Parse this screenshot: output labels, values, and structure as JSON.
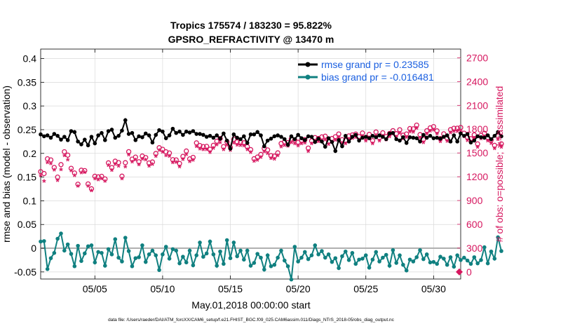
{
  "title_line1": "Tropics 175574 / 183230 = 95.822%",
  "title_line2": "GPSRO_REFRACTIVITY @ 13470 m",
  "footer_note": "data file: /Users/raeder/DAI/ATM_forcXX/CAM6_setup/f.e21.FHIST_BGC.f09_025.CAM6assim.011/Diags_NTrS_2018-05/obs_diag_output.nc",
  "colors": {
    "rmse": "#000000",
    "bias": "#108080",
    "obs": "#d6175f",
    "zero_line": "#b0b0b0",
    "legend_text": "#1a5fe0"
  },
  "chart_data": {
    "type": "line",
    "xlabel": "May.01,2018 00:00:00 start",
    "ylabel_left": "rmse and bias (model - observation)",
    "ylabel_right": "# of obs: o=possible; ∗=assimilated",
    "xlim": [
      1,
      32
    ],
    "ylim_left": [
      -0.065,
      0.42
    ],
    "ylim_right": [
      -90,
      2810
    ],
    "x_ticks": [
      5,
      10,
      15,
      20,
      25,
      30
    ],
    "x_tick_labels": [
      "05/05",
      "05/10",
      "05/15",
      "05/20",
      "05/25",
      "05/30"
    ],
    "y_left_ticks": [
      -0.05,
      0,
      0.05,
      0.1,
      0.15,
      0.2,
      0.25,
      0.3,
      0.35,
      0.4
    ],
    "y_left_tick_labels": [
      "-0.05",
      "0",
      "0.05",
      "0.1",
      "0.15",
      "0.2",
      "0.25",
      "0.3",
      "0.35",
      "0.4"
    ],
    "y_right_ticks": [
      0,
      300,
      600,
      900,
      1200,
      1500,
      1800,
      2100,
      2400,
      2700
    ],
    "y_right_tick_labels": [
      "0",
      "300",
      "600",
      "900",
      "1200",
      "1500",
      "1800",
      "2100",
      "2400",
      "2700"
    ],
    "legend": [
      "rmse grand pr = 0.23585",
      "bias grand pr = -0.016481"
    ],
    "legend_position": "top-right",
    "x_step_days": 0.25,
    "x_start": 1.0,
    "rmse": [
      0.24,
      0.236,
      0.238,
      0.233,
      0.241,
      0.237,
      0.229,
      0.235,
      0.228,
      0.247,
      0.245,
      0.225,
      0.219,
      0.229,
      0.217,
      0.235,
      0.221,
      0.238,
      0.243,
      0.228,
      0.247,
      0.25,
      0.233,
      0.237,
      0.248,
      0.27,
      0.241,
      0.243,
      0.228,
      0.236,
      0.234,
      0.242,
      0.238,
      0.223,
      0.239,
      0.249,
      0.246,
      0.232,
      0.238,
      0.252,
      0.243,
      0.246,
      0.239,
      0.246,
      0.244,
      0.247,
      0.241,
      0.241,
      0.239,
      0.235,
      0.237,
      0.233,
      0.238,
      0.231,
      0.242,
      0.227,
      0.21,
      0.24,
      0.233,
      0.23,
      0.236,
      0.222,
      0.24,
      0.24,
      0.245,
      0.238,
      0.215,
      0.227,
      0.231,
      0.236,
      0.238,
      0.235,
      0.23,
      0.218,
      0.236,
      0.23,
      0.239,
      0.232,
      0.228,
      0.236,
      0.235,
      0.224,
      0.231,
      0.225,
      0.214,
      0.232,
      0.224,
      0.205,
      0.228,
      0.215,
      0.237,
      0.225,
      0.235,
      0.239,
      0.227,
      0.233,
      0.235,
      0.232,
      0.237,
      0.234,
      0.238,
      0.235,
      0.23,
      0.242,
      0.243,
      0.23,
      0.227,
      0.234,
      0.222,
      0.234,
      0.233,
      0.232,
      0.225,
      0.239,
      0.233,
      0.237,
      0.232,
      0.233,
      0.231,
      0.235,
      0.238,
      0.225,
      0.238,
      0.225,
      0.242,
      0.237,
      0.241,
      0.223,
      0.227,
      0.236,
      0.234,
      0.233,
      0.238,
      0.23,
      0.237,
      0.245,
      0.236
    ],
    "bias": [
      0.014,
      0.015,
      -0.044,
      -0.021,
      -0.01,
      0.02,
      0.031,
      -0.005,
      0.008,
      -0.012,
      -0.038,
      0.005,
      -0.027,
      -0.011,
      0.004,
      0.006,
      -0.03,
      -0.008,
      -0.01,
      -0.037,
      -0.002,
      -0.013,
      0.019,
      -0.02,
      -0.028,
      0.022,
      -0.006,
      -0.038,
      -0.021,
      -0.019,
      0.006,
      -0.029,
      -0.013,
      -0.005,
      -0.015,
      -0.046,
      -0.013,
      0.003,
      -0.022,
      -0.002,
      -0.005,
      -0.032,
      -0.018,
      -0.03,
      -0.005,
      -0.036,
      -0.015,
      0.012,
      -0.018,
      -0.011,
      0.014,
      -0.013,
      -0.037,
      -0.007,
      -0.033,
      0.017,
      -0.021,
      0.012,
      -0.017,
      -0.005,
      -0.024,
      -0.005,
      -0.037,
      -0.031,
      -0.012,
      -0.02,
      -0.045,
      -0.015,
      -0.038,
      -0.035,
      -0.02,
      -0.005,
      -0.026,
      -0.038,
      -0.066,
      0.003,
      -0.028,
      -0.02,
      -0.008,
      -0.023,
      -0.015,
      0.006,
      -0.013,
      -0.006,
      -0.02,
      -0.013,
      -0.029,
      -0.021,
      -0.042,
      -0.017,
      -0.007,
      -0.025,
      -0.01,
      -0.033,
      -0.024,
      -0.022,
      -0.015,
      -0.041,
      -0.024,
      -0.008,
      -0.028,
      -0.02,
      -0.014,
      -0.037,
      -0.004,
      -0.031,
      -0.015,
      -0.035,
      -0.047,
      -0.024,
      -0.028,
      -0.019,
      -0.004,
      -0.023,
      -0.013,
      -0.03,
      -0.029,
      -0.033,
      -0.018,
      -0.022,
      -0.035,
      -0.019,
      -0.039,
      -0.015,
      -0.025,
      -0.02,
      -0.026,
      -0.033,
      -0.019,
      -0.032,
      -0.025,
      0.002,
      -0.032,
      -0.007,
      -0.022,
      0.023,
      -0.006
    ],
    "obs_possible": [
      1264,
      1240,
      1426,
      1412,
      1317,
      1195,
      1353,
      1515,
      1472,
      1306,
      1247,
      1106,
      1282,
      1277,
      1109,
      1048,
      1206,
      1198,
      1205,
      1172,
      1375,
      1316,
      1396,
      1379,
      1207,
      1377,
      1516,
      1422,
      1447,
      1389,
      1461,
      1442,
      1373,
      1386,
      1493,
      1566,
      1546,
      1514,
      1499,
      1415,
      1412,
      1367,
      1456,
      1524,
      1425,
      1444,
      1627,
      1593,
      1580,
      1583,
      1547,
      1596,
      1648,
      1682,
      1580,
      1639,
      1571,
      1673,
      1639,
      1634,
      1628,
      1580,
      1542,
      1427,
      1448,
      1481,
      1557,
      1538,
      1466,
      1460,
      1501,
      1619,
      1639,
      1631,
      1676,
      1664,
      1634,
      1657,
      1668,
      1561,
      1652,
      1694,
      1683,
      1702,
      1711,
      1646,
      1682,
      1704,
      1739,
      1667,
      1657,
      1715,
      1727,
      1738,
      1706,
      1751,
      1693,
      1734,
      1655,
      1764,
      1692,
      1754,
      1707,
      1745,
      1781,
      1743,
      1792,
      1724,
      1739,
      1807,
      1804,
      1851,
      1731,
      1671,
      1780,
      1816,
      1832,
      1779,
      1681,
      1741,
      1687,
      1794,
      1811,
      1812,
      1821,
      1749,
      1697,
      1680,
      1728,
      1614,
      1722,
      1748,
      1693,
      1664,
      1596,
      1713,
      1615
    ],
    "obs_assimilated": [
      1201,
      1132,
      1365,
      1351,
      1270,
      1139,
      1278,
      1451,
      1398,
      1261,
      1201,
      1069,
      1237,
      1242,
      1069,
      1011,
      1163,
      1148,
      1162,
      1129,
      1327,
      1265,
      1341,
      1320,
      1160,
      1313,
      1460,
      1372,
      1400,
      1340,
      1409,
      1398,
      1322,
      1343,
      1444,
      1519,
      1497,
      1454,
      1446,
      1366,
      1371,
      1313,
      1406,
      1464,
      1377,
      1394,
      1569,
      1539,
      1527,
      1528,
      1492,
      1544,
      1589,
      1617,
      1527,
      1585,
      1520,
      1613,
      1584,
      1582,
      1575,
      1526,
      1493,
      1381,
      1397,
      1430,
      1500,
      1481,
      1419,
      1409,
      1453,
      1564,
      1582,
      1571,
      1617,
      1604,
      1576,
      1603,
      1611,
      1508,
      1602,
      1637,
      1629,
      1643,
      1653,
      1593,
      1624,
      1647,
      1681,
      1608,
      1602,
      1659,
      1671,
      1683,
      1650,
      1695,
      1637,
      1680,
      1603,
      1707,
      1637,
      1698,
      1652,
      1690,
      1728,
      1689,
      1737,
      1667,
      1682,
      1754,
      1748,
      1796,
      1676,
      1617,
      1725,
      1763,
      1776,
      1725,
      1630,
      1686,
      1633,
      1739,
      1756,
      1756,
      1764,
      1692,
      1642,
      1624,
      1672,
      1560,
      1666,
      1691,
      1637,
      1608,
      1543,
      1656,
      1560
    ],
    "end_marker_value": 0
  }
}
